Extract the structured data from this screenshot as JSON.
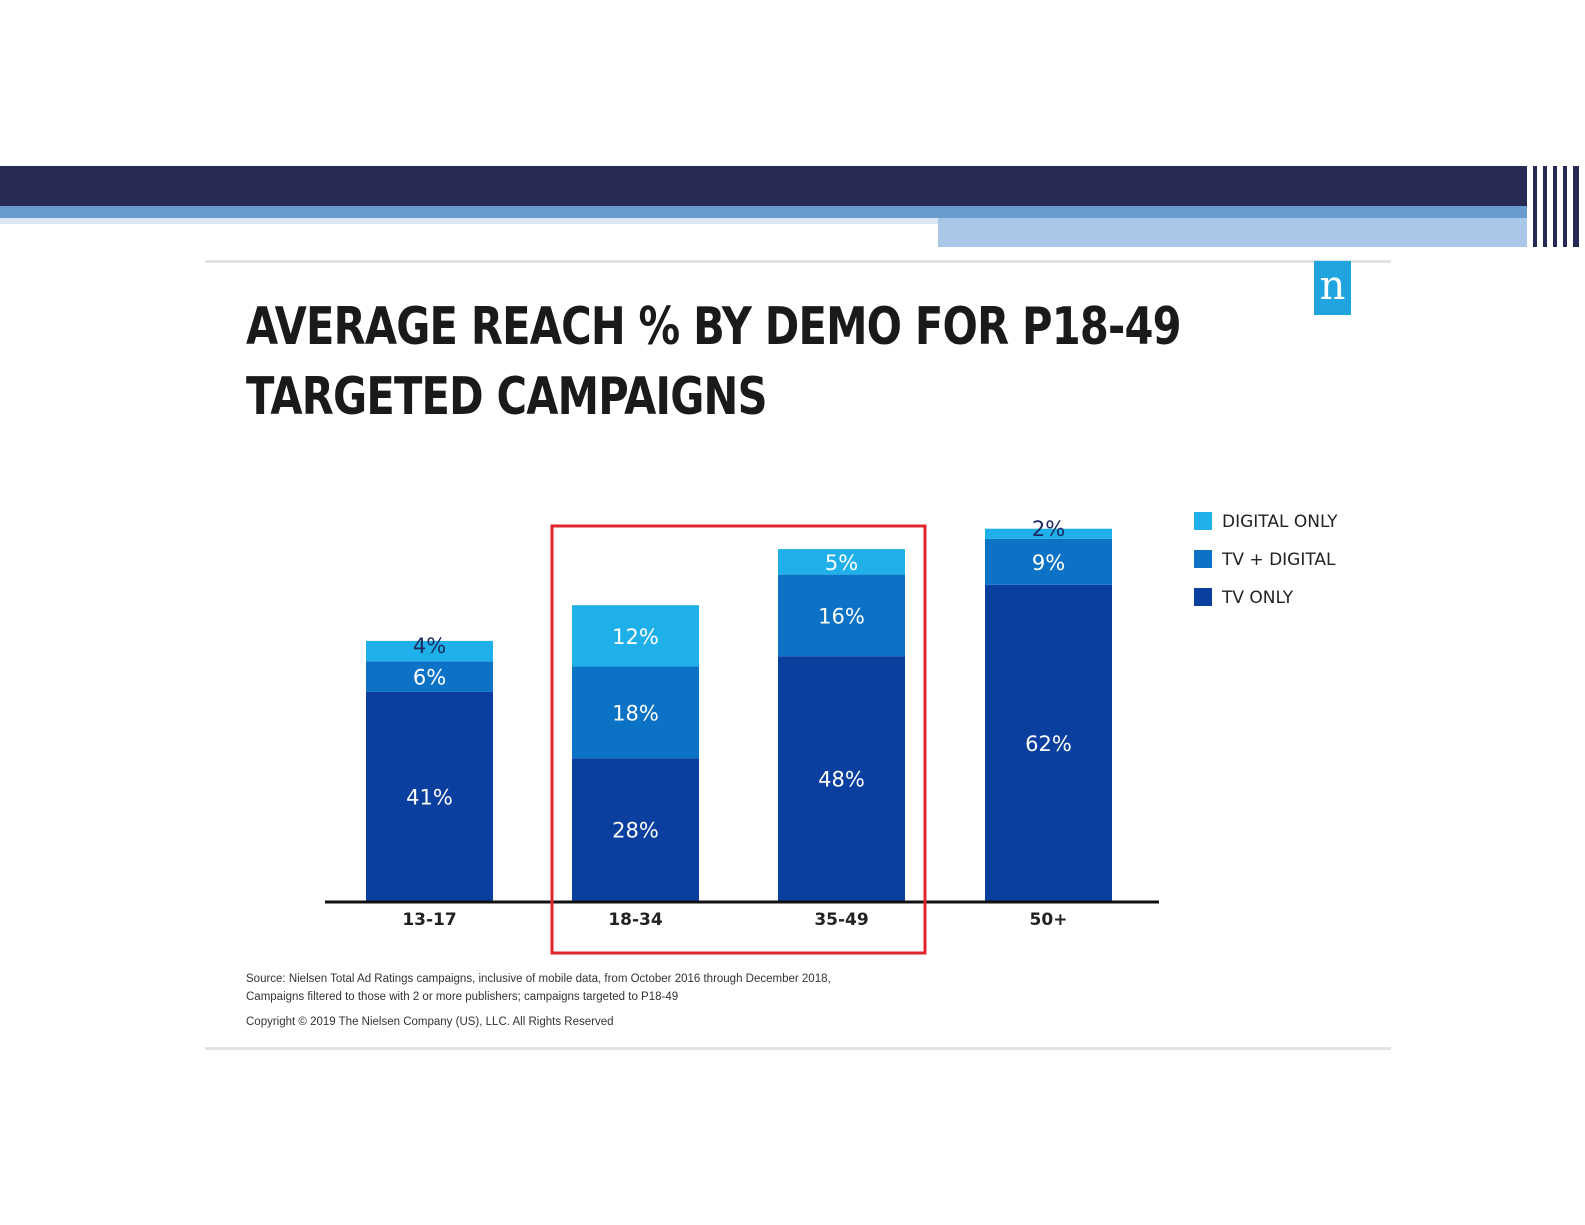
{
  "title_line1": "AVERAGE REACH % BY DEMO FOR P18-49",
  "title_line2": "TARGETED CAMPAIGNS",
  "logo_letter": "n",
  "footnote_source": "Source: Nielsen Total Ad Ratings campaigns, inclusive of mobile data, from October 2016 through December 2018,",
  "footnote_filter": "Campaigns filtered to those with 2 or more publishers; campaigns targeted to P18-49",
  "copyright": "Copyright © 2019 The Nielsen Company (US), LLC. All Rights Reserved",
  "chart_data": {
    "type": "bar",
    "stacked": true,
    "title": "AVERAGE REACH % BY DEMO FOR P18-49 TARGETED CAMPAIGNS",
    "categories": [
      "13-17",
      "18-34",
      "35-49",
      "50+"
    ],
    "series": [
      {
        "name": "TV ONLY",
        "values": [
          41,
          28,
          48,
          62
        ],
        "color": "#0a3fa0"
      },
      {
        "name": "TV + DIGITAL",
        "values": [
          6,
          18,
          16,
          9
        ],
        "color": "#0c72c6"
      },
      {
        "name": "DIGITAL ONLY",
        "values": [
          4,
          12,
          5,
          2
        ],
        "color": "#1fb0ea"
      }
    ],
    "data_labels": [
      [
        "41%",
        "28%",
        "48%",
        "62%"
      ],
      [
        "6%",
        "18%",
        "16%",
        "9%"
      ],
      [
        "4%",
        "12%",
        "5%",
        "2%"
      ]
    ],
    "legend_order": [
      "DIGITAL ONLY",
      "TV + DIGITAL",
      "TV ONLY"
    ],
    "legend_position": "right",
    "highlight": {
      "categories": [
        "18-34",
        "35-49"
      ],
      "color": "#e0262c"
    },
    "xlabel": "",
    "ylabel": "",
    "ylim": [
      0,
      80
    ],
    "grid": false,
    "axis_color": "#111111"
  }
}
